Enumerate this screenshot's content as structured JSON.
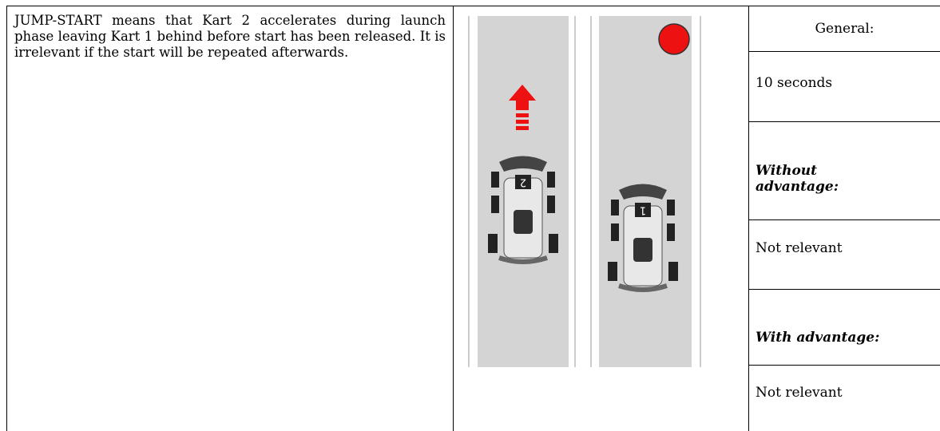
{
  "description": "JUMP-START means that Kart 2 accelerates during launch phase leaving Kart 1 behind before start has been released. It is irrelevant if the start will be repeated afterwards.",
  "graphic": {
    "karts": [
      "2",
      "1"
    ]
  },
  "table": {
    "rows": [
      "General:",
      "10 seconds",
      "Without advantage:",
      "Not relevant",
      "With advantage:",
      "Not relevant"
    ]
  }
}
